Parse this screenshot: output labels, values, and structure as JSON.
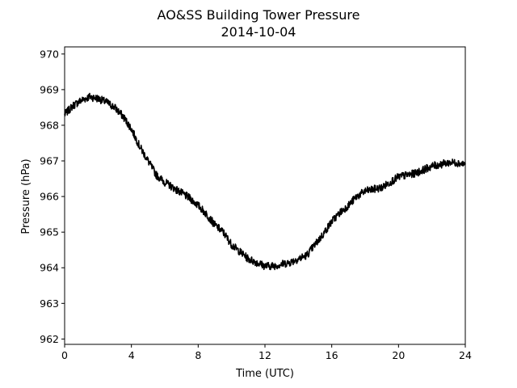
{
  "chart_data": {
    "type": "line",
    "title": "AO&SS Building Tower Pressure",
    "subtitle": "2014-10-04",
    "xlabel": "Time (UTC)",
    "ylabel": "Pressure (hPa)",
    "xlim": [
      0,
      24
    ],
    "ylim": [
      961.85,
      970.2
    ],
    "xticks": [
      0,
      4,
      8,
      12,
      16,
      20,
      24
    ],
    "yticks": [
      962,
      963,
      964,
      965,
      966,
      967,
      968,
      969,
      970
    ],
    "grid": false,
    "line_color": "#000000",
    "series": [
      {
        "x": [
          0.0,
          0.5,
          1.0,
          1.5,
          2.0,
          2.5,
          3.0,
          3.5,
          4.0,
          4.5,
          5.0,
          5.5,
          6.0,
          6.5,
          7.0,
          7.5,
          8.0,
          8.5,
          9.0,
          9.5,
          10.0,
          10.5,
          11.0,
          11.5,
          12.0,
          12.5,
          13.0,
          13.5,
          14.0,
          14.5,
          15.0,
          15.5,
          16.0,
          16.5,
          17.0,
          17.5,
          18.0,
          18.5,
          19.0,
          19.5,
          20.0,
          20.5,
          21.0,
          21.5,
          22.0,
          22.5,
          23.0,
          23.5,
          24.0
        ],
        "y": [
          968.3,
          968.55,
          968.7,
          968.8,
          968.75,
          968.65,
          968.5,
          968.25,
          967.9,
          967.4,
          967.0,
          966.6,
          966.4,
          966.25,
          966.1,
          965.95,
          965.75,
          965.5,
          965.2,
          965.0,
          964.65,
          964.45,
          964.25,
          964.15,
          964.05,
          964.05,
          964.1,
          964.15,
          964.25,
          964.35,
          964.65,
          964.95,
          965.3,
          965.55,
          965.75,
          966.0,
          966.15,
          966.2,
          966.25,
          966.4,
          966.55,
          966.6,
          966.65,
          966.75,
          966.85,
          966.9,
          966.95,
          966.95,
          966.9
        ]
      }
    ]
  }
}
